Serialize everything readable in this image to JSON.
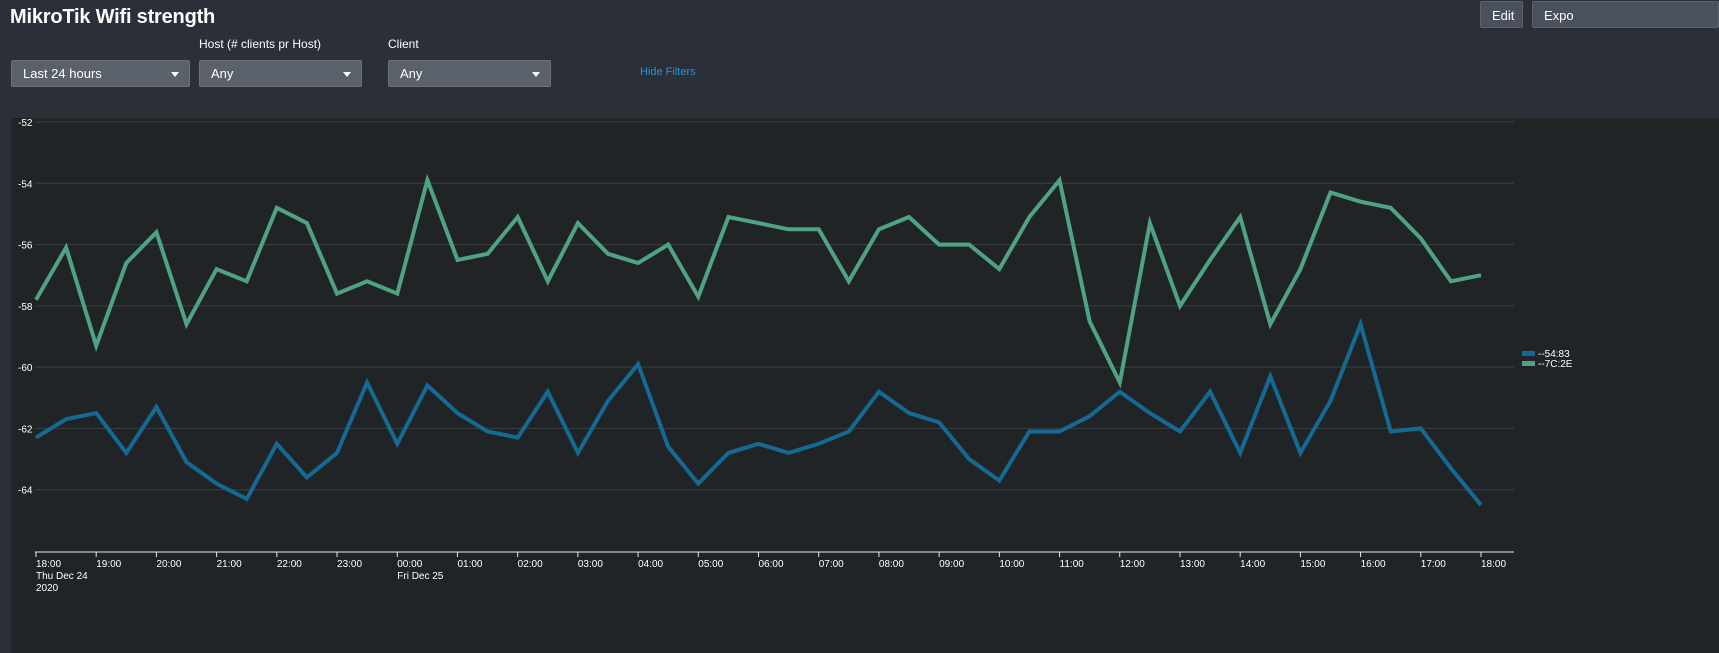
{
  "header": {
    "title": "MikroTik Wifi strength",
    "edit_label": "Edit",
    "export_label": "Expo"
  },
  "filters": {
    "time": {
      "label": "",
      "value": "Last 24 hours"
    },
    "host": {
      "label": "Host (# clients pr Host)",
      "value": "Any"
    },
    "client": {
      "label": "Client",
      "value": "Any"
    },
    "hide_filters_label": "Hide Filters"
  },
  "colors": {
    "series_blue": "#146a93",
    "series_green": "#4fa383",
    "link": "#1e93e6"
  },
  "chart_data": {
    "type": "line",
    "title": "",
    "xlabel": "",
    "ylabel": "",
    "ylim": [
      -66,
      -52
    ],
    "yticks": [
      "-52",
      "-54",
      "-56",
      "-58",
      "-60",
      "-62",
      "-64"
    ],
    "grid": true,
    "legend_position": "right",
    "x_ticks": [
      {
        "time": "18:00",
        "sub1": "Thu Dec 24",
        "sub2": "2020"
      },
      {
        "time": "19:00"
      },
      {
        "time": "20:00"
      },
      {
        "time": "21:00"
      },
      {
        "time": "22:00"
      },
      {
        "time": "23:00"
      },
      {
        "time": "00:00",
        "sub1": "Fri Dec 25"
      },
      {
        "time": "01:00"
      },
      {
        "time": "02:00"
      },
      {
        "time": "03:00"
      },
      {
        "time": "04:00"
      },
      {
        "time": "05:00"
      },
      {
        "time": "06:00"
      },
      {
        "time": "07:00"
      },
      {
        "time": "08:00"
      },
      {
        "time": "09:00"
      },
      {
        "time": "10:00"
      },
      {
        "time": "11:00"
      },
      {
        "time": "12:00"
      },
      {
        "time": "13:00"
      },
      {
        "time": "14:00"
      },
      {
        "time": "15:00"
      },
      {
        "time": "16:00"
      },
      {
        "time": "17:00"
      },
      {
        "time": "18:00"
      }
    ],
    "x_step": "30 minutes",
    "series": [
      {
        "name": "--54:83",
        "color": "#146a93",
        "values": [
          -62.3,
          -61.7,
          -61.5,
          -62.8,
          -61.3,
          -63.1,
          -63.8,
          -64.3,
          -62.5,
          -63.6,
          -62.8,
          -60.5,
          -62.5,
          -60.6,
          -61.5,
          -62.1,
          -62.3,
          -60.8,
          -62.8,
          -61.1,
          -59.9,
          -62.6,
          -63.8,
          -62.8,
          -62.5,
          -62.8,
          -62.5,
          -62.1,
          -60.8,
          -61.5,
          -61.8,
          -63.0,
          -63.7,
          -62.1,
          -62.1,
          -61.6,
          -60.8,
          -61.5,
          -62.1,
          -60.8,
          -62.8,
          -60.3,
          -62.8,
          -61.1,
          -58.6,
          -62.1,
          -62.0,
          -63.3,
          -64.5
        ]
      },
      {
        "name": "--7C:2E",
        "color": "#4fa383",
        "values": [
          -57.8,
          -56.1,
          -59.3,
          -56.6,
          -55.6,
          -58.6,
          -56.8,
          -57.2,
          -54.8,
          -55.3,
          -57.6,
          -57.2,
          -57.6,
          -53.9,
          -56.5,
          -56.3,
          -55.1,
          -57.2,
          -55.3,
          -56.3,
          -56.6,
          -56.0,
          -57.7,
          -55.1,
          -55.3,
          -55.5,
          -55.5,
          -57.2,
          -55.5,
          -55.1,
          -56.0,
          -56.0,
          -56.8,
          -55.1,
          -53.9,
          -58.5,
          -60.5,
          -55.3,
          -58.0,
          -56.5,
          -55.1,
          -58.6,
          -56.8,
          -54.3,
          -54.6,
          -54.8,
          -55.8,
          -57.2,
          -57.0
        ]
      }
    ]
  }
}
